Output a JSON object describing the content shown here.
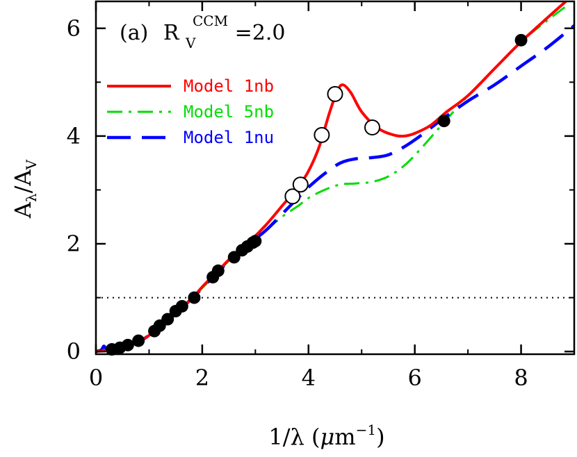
{
  "chart_data": {
    "type": "line",
    "panel_label": "(a)",
    "annotation": {
      "symbol": "R",
      "sub": "V",
      "sup": "CCM",
      "value": "=2.0"
    },
    "xlabel": {
      "text": "1/λ (",
      "mu": "μ",
      "unit": "m",
      "sup": "−1",
      "close": ")"
    },
    "ylabel": {
      "main": "A",
      "sub": "λ",
      "slash": "/",
      "main2": "A",
      "sub2": "V"
    },
    "xlim": [
      0,
      9
    ],
    "ylim": [
      -0.05,
      6.5
    ],
    "xticks": [
      0,
      2,
      4,
      6,
      8
    ],
    "xtick_labels": [
      "0",
      "2",
      "4",
      "6",
      "8"
    ],
    "yticks": [
      0,
      2,
      4,
      6
    ],
    "ytick_labels": [
      "0",
      "2",
      "4",
      "6"
    ],
    "reference_line": {
      "y": 1.0,
      "style": "dotted"
    },
    "colors": {
      "model_1nb": "#ff0000",
      "model_5nb": "#00dd00",
      "model_1nu": "#0000ff"
    },
    "series": [
      {
        "name": "Model 1nb",
        "color": "#ff0000",
        "dash": "solid",
        "x": [
          0.0,
          0.3,
          0.5,
          0.8,
          1.0,
          1.2,
          1.5,
          1.82,
          2.0,
          2.3,
          2.6,
          2.9,
          3.2,
          3.5,
          3.8,
          4.0,
          4.2,
          4.4,
          4.55,
          4.65,
          4.8,
          5.0,
          5.3,
          5.6,
          5.8,
          6.0,
          6.3,
          6.6,
          7.0,
          7.5,
          8.0,
          8.5,
          8.9
        ],
        "y": [
          0.0,
          0.03,
          0.08,
          0.18,
          0.3,
          0.45,
          0.7,
          1.0,
          1.2,
          1.5,
          1.8,
          2.05,
          2.35,
          2.7,
          3.05,
          3.35,
          3.8,
          4.45,
          4.85,
          4.95,
          4.8,
          4.45,
          4.15,
          4.02,
          4.0,
          4.05,
          4.2,
          4.45,
          4.75,
          5.25,
          5.75,
          6.2,
          6.55
        ]
      },
      {
        "name": "Model 5nb",
        "color": "#00dd00",
        "dash": "dash-dot",
        "x": [
          0.0,
          0.3,
          0.5,
          0.8,
          1.0,
          1.2,
          1.5,
          1.82,
          2.0,
          2.3,
          2.6,
          2.9,
          3.2,
          3.5,
          3.8,
          4.0,
          4.3,
          4.6,
          4.9,
          5.2,
          5.5,
          5.8,
          6.1,
          6.5,
          7.0,
          7.5,
          8.0,
          8.5,
          8.9
        ],
        "y": [
          0.0,
          0.03,
          0.08,
          0.18,
          0.3,
          0.45,
          0.7,
          1.0,
          1.18,
          1.48,
          1.78,
          2.0,
          2.25,
          2.5,
          2.7,
          2.85,
          3.0,
          3.1,
          3.12,
          3.15,
          3.25,
          3.45,
          3.75,
          4.2,
          4.75,
          5.25,
          5.75,
          6.15,
          6.45
        ]
      },
      {
        "name": "Model 1nu",
        "color": "#0000ff",
        "dash": "long-dash",
        "x": [
          0.0,
          0.1,
          0.15,
          0.2,
          0.3,
          0.5,
          0.8,
          1.0,
          1.2,
          1.5,
          1.82,
          2.0,
          2.3,
          2.6,
          2.9,
          3.2,
          3.5,
          3.8,
          4.0,
          4.3,
          4.6,
          4.9,
          5.2,
          5.5,
          5.8,
          6.1,
          6.5,
          7.0,
          7.5,
          8.0,
          8.5,
          9.0
        ],
        "y": [
          0.0,
          0.03,
          0.1,
          0.04,
          0.03,
          0.08,
          0.18,
          0.3,
          0.45,
          0.7,
          1.0,
          1.18,
          1.48,
          1.78,
          2.02,
          2.25,
          2.55,
          2.85,
          3.05,
          3.3,
          3.5,
          3.58,
          3.6,
          3.65,
          3.8,
          4.0,
          4.3,
          4.65,
          4.95,
          5.3,
          5.65,
          6.05
        ]
      }
    ],
    "points_filled": {
      "x": [
        0.3,
        0.45,
        0.6,
        0.8,
        1.1,
        1.2,
        1.35,
        1.5,
        1.62,
        1.85,
        2.2,
        2.3,
        2.6,
        2.75,
        2.85,
        2.95,
        3.0,
        6.55,
        8.0
      ],
      "y": [
        0.04,
        0.07,
        0.12,
        0.2,
        0.38,
        0.48,
        0.6,
        0.75,
        0.84,
        1.0,
        1.38,
        1.5,
        1.75,
        1.88,
        1.95,
        2.02,
        2.05,
        4.28,
        5.78
      ]
    },
    "points_open": {
      "x": [
        3.7,
        3.85,
        4.25,
        4.5,
        5.2
      ],
      "y": [
        2.88,
        3.1,
        4.02,
        4.78,
        4.16
      ]
    }
  }
}
